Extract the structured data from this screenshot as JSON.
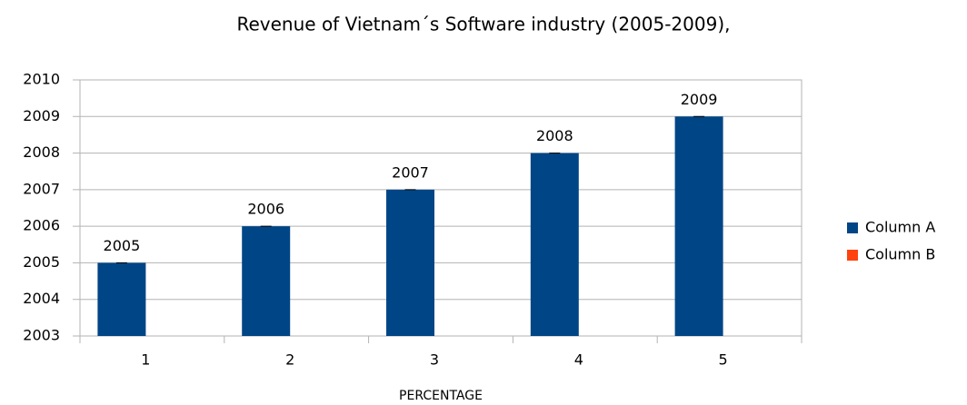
{
  "chart_data": {
    "type": "bar",
    "title": "Revenue of Vietnam´s Software industry (2005-2009),",
    "x_label": "PERCENTAGE",
    "categories": [
      "1",
      "2",
      "3",
      "4",
      "5"
    ],
    "series": [
      {
        "name": "Column A",
        "color": "#004586",
        "values": [
          2005,
          2006,
          2007,
          2008,
          2009
        ]
      },
      {
        "name": "Column B",
        "color": "#ff420e",
        "values": [
          null,
          null,
          null,
          null,
          null
        ]
      }
    ],
    "ylim": [
      2003,
      2010
    ],
    "yticks": [
      2003,
      2004,
      2005,
      2006,
      2007,
      2008,
      2009,
      2010
    ],
    "grid": true,
    "legend": "right"
  }
}
